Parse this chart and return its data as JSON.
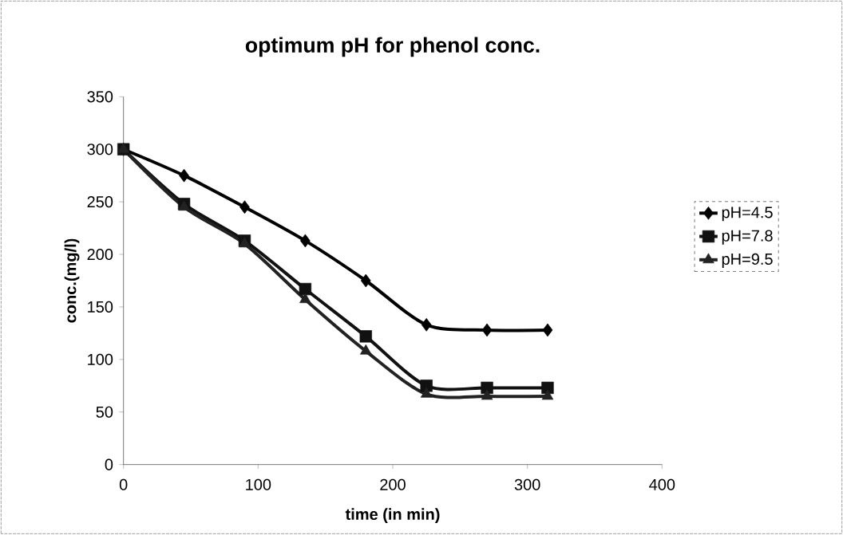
{
  "chart_data": {
    "type": "line",
    "title": "optimum pH for phenol conc.",
    "xlabel": "time (in min)",
    "ylabel": "conc.(mg/l)",
    "x": [
      0,
      45,
      90,
      135,
      180,
      225,
      270,
      315
    ],
    "series": [
      {
        "name": "pH=4.5",
        "color": "#000000",
        "marker": "diamond",
        "values": [
          300,
          275,
          245,
          213,
          175,
          133,
          128,
          128
        ]
      },
      {
        "name": "pH=7.8",
        "color": "#111111",
        "marker": "square",
        "values": [
          300,
          248,
          213,
          167,
          122,
          75,
          73,
          73
        ]
      },
      {
        "name": "pH=9.5",
        "color": "#222222",
        "marker": "triangle",
        "values": [
          300,
          245,
          210,
          157,
          108,
          67,
          65,
          65
        ]
      }
    ],
    "xlim": [
      0,
      400
    ],
    "xticks": [
      0,
      100,
      200,
      300,
      400
    ],
    "ylim": [
      0,
      350
    ],
    "yticks": [
      0,
      50,
      100,
      150,
      200,
      250,
      300,
      350
    ],
    "grid": false,
    "legend": "right",
    "line_style": "solid"
  }
}
